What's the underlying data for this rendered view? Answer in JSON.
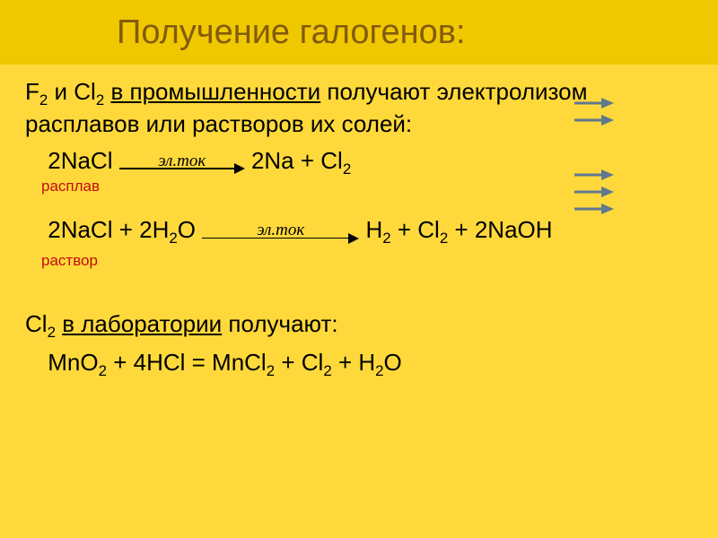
{
  "colors": {
    "header_bg": "#f0c800",
    "body_bg": "#ffd93b",
    "title_color": "#825b0c",
    "text_color": "#000000",
    "annot_color": "#c20e0e",
    "pointer_color": "#607890"
  },
  "title": "Получение галогенов:",
  "intro": {
    "prefix": "F",
    "s1": "2",
    "mid1": " и Cl",
    "s2": "2",
    "space": " ",
    "underline": "в промышленности",
    "rest": " получают электролизом расплавов или растворов их солей:"
  },
  "eq1": {
    "lhs": "2NaCl ",
    "arrow_label": "эл.ток",
    "rhs_a": " 2Na + Cl",
    "rhs_sub": "2"
  },
  "annot1": "расплав",
  "eq2": {
    "lhs_a": "2NaCl + 2H",
    "lhs_s1": "2",
    "lhs_b": "O ",
    "arrow_label": "эл.ток",
    "rhs_a": " H",
    "rhs_s1": "2",
    "rhs_b": " + Cl",
    "rhs_s2": "2",
    "rhs_c": "  + 2NaOH"
  },
  "annot2": "раствор",
  "lab": {
    "prefix": "Cl",
    "s1": "2",
    "space": " ",
    "underline": "в лаборатории",
    "rest": " получают:"
  },
  "eq3": {
    "a": "MnO",
    "s1": "2",
    "b": " + 4HCl = MnCl",
    "s2": "2",
    "c": " + Cl",
    "s3": "2",
    "d": " + H",
    "s4": "2",
    "e": "O"
  }
}
